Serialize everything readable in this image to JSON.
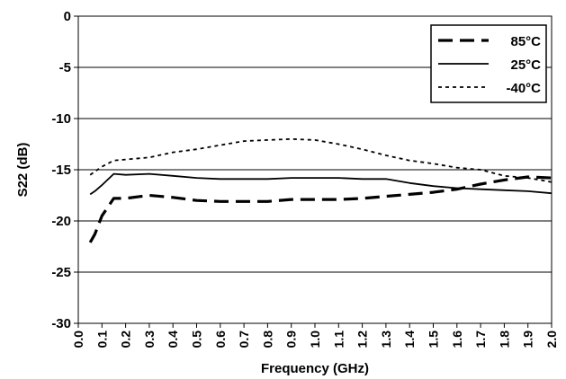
{
  "chart_data": {
    "type": "line",
    "title": "",
    "xlabel": "Frequency (GHz)",
    "ylabel": "S22 (dB)",
    "xlim": [
      0.0,
      2.0
    ],
    "ylim": [
      -30,
      0
    ],
    "x_ticks": [
      "0.0",
      "0.1",
      "0.2",
      "0.3",
      "0.4",
      "0.5",
      "0.6",
      "0.7",
      "0.8",
      "0.9",
      "1.0",
      "1.1",
      "1.2",
      "1.3",
      "1.4",
      "1.5",
      "1.6",
      "1.7",
      "1.8",
      "1.9",
      "2.0"
    ],
    "y_ticks": [
      "0",
      "-5",
      "-10",
      "-15",
      "-20",
      "-25",
      "-30"
    ],
    "grid": "horizontal",
    "legend_position": "top-right",
    "series": [
      {
        "name": "85°C",
        "style": "dashed-thick",
        "color": "#000000",
        "x": [
          0.05,
          0.07,
          0.1,
          0.15,
          0.2,
          0.3,
          0.4,
          0.5,
          0.6,
          0.7,
          0.8,
          0.9,
          1.0,
          1.1,
          1.2,
          1.3,
          1.4,
          1.5,
          1.6,
          1.7,
          1.8,
          1.9,
          2.0
        ],
        "values": [
          -22.1,
          -21.3,
          -19.5,
          -17.8,
          -17.8,
          -17.5,
          -17.7,
          -18.0,
          -18.1,
          -18.1,
          -18.1,
          -17.9,
          -17.9,
          -17.9,
          -17.8,
          -17.6,
          -17.4,
          -17.2,
          -16.9,
          -16.4,
          -16.0,
          -15.7,
          -15.8
        ]
      },
      {
        "name": "25°C",
        "style": "solid",
        "color": "#000000",
        "x": [
          0.05,
          0.07,
          0.1,
          0.15,
          0.2,
          0.3,
          0.4,
          0.5,
          0.6,
          0.7,
          0.8,
          0.9,
          1.0,
          1.1,
          1.2,
          1.3,
          1.4,
          1.5,
          1.6,
          1.7,
          1.8,
          1.9,
          2.0
        ],
        "values": [
          -17.4,
          -17.1,
          -16.5,
          -15.4,
          -15.5,
          -15.4,
          -15.6,
          -15.8,
          -15.9,
          -15.9,
          -15.9,
          -15.8,
          -15.8,
          -15.8,
          -15.9,
          -15.9,
          -16.3,
          -16.6,
          -16.8,
          -16.9,
          -17.0,
          -17.1,
          -17.3
        ]
      },
      {
        "name": "-40°C",
        "style": "dotted",
        "color": "#000000",
        "x": [
          0.05,
          0.1,
          0.15,
          0.2,
          0.3,
          0.4,
          0.5,
          0.6,
          0.7,
          0.8,
          0.9,
          1.0,
          1.1,
          1.2,
          1.3,
          1.4,
          1.5,
          1.6,
          1.7,
          1.8,
          1.9,
          2.0
        ],
        "values": [
          -15.5,
          -14.7,
          -14.1,
          -14.0,
          -13.8,
          -13.3,
          -13.0,
          -12.6,
          -12.2,
          -12.1,
          -12.0,
          -12.1,
          -12.5,
          -13.0,
          -13.6,
          -14.1,
          -14.4,
          -14.8,
          -15.0,
          -15.6,
          -15.8,
          -16.2
        ]
      }
    ]
  }
}
